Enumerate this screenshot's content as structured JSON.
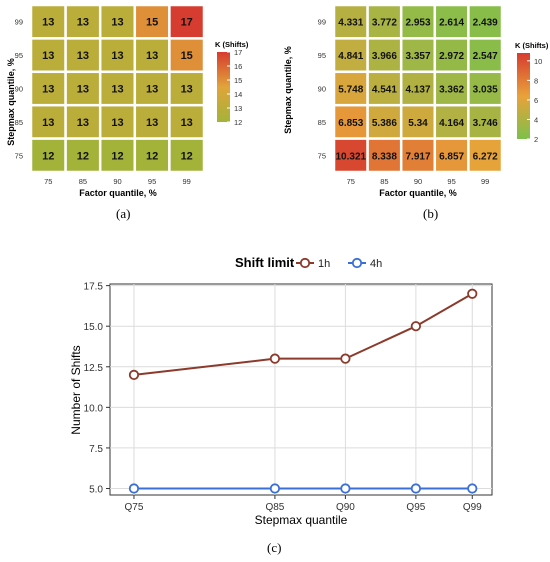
{
  "panel_labels": {
    "a": "(a)",
    "b": "(b)",
    "c": "(c)"
  },
  "chart_data": [
    {
      "type": "heatmap",
      "panel": "a",
      "xlabel": "Factor quantile, %",
      "ylabel": "Stepmax quantile, %",
      "x_ticks": [
        "75",
        "85",
        "90",
        "95",
        "99"
      ],
      "y_ticks": [
        "99",
        "95",
        "90",
        "85",
        "75"
      ],
      "values": [
        [
          13,
          13,
          13,
          15,
          17
        ],
        [
          13,
          13,
          13,
          13,
          15
        ],
        [
          13,
          13,
          13,
          13,
          13
        ],
        [
          13,
          13,
          13,
          13,
          13
        ],
        [
          12,
          12,
          12,
          12,
          12
        ]
      ],
      "legend_title": "K (Shifts)",
      "legend_ticks": [
        "17",
        "16",
        "15",
        "14",
        "13",
        "12"
      ],
      "color_range": [
        12,
        17
      ],
      "colors": {
        "low": "#a3b33a",
        "mid": "#e0a43a",
        "high": "#d63c2f"
      }
    },
    {
      "type": "heatmap",
      "panel": "b",
      "xlabel": "Factor quantile, %",
      "ylabel": "Stepmax quantile, %",
      "x_ticks": [
        "75",
        "85",
        "90",
        "95",
        "99"
      ],
      "y_ticks": [
        "99",
        "95",
        "90",
        "85",
        "75"
      ],
      "values": [
        [
          4.331,
          3.772,
          2.953,
          2.614,
          2.439
        ],
        [
          4.841,
          3.966,
          3.357,
          2.972,
          2.547
        ],
        [
          5.748,
          4.541,
          4.137,
          3.362,
          3.035
        ],
        [
          6.853,
          5.386,
          5.34,
          4.164,
          3.746
        ],
        [
          10.321,
          8.338,
          7.917,
          6.857,
          6.272
        ]
      ],
      "value_labels": [
        [
          "4.331",
          "3.772",
          "2.953",
          "2.614",
          "2.439"
        ],
        [
          "4.841",
          "3.966",
          "3.357",
          "2.972",
          "2.547"
        ],
        [
          "5.748",
          "4.541",
          "4.137",
          "3.362",
          "3.035"
        ],
        [
          "6.853",
          "5.386",
          "5.34",
          "4.164",
          "3.746"
        ],
        [
          "10.321",
          "8.338",
          "7.917",
          "6.857",
          "6.272"
        ]
      ],
      "legend_title": "K (Shifts)",
      "legend_ticks": [
        "10",
        "8",
        "6",
        "4",
        "2"
      ],
      "color_range": [
        2,
        10.8
      ],
      "colors": {
        "low": "#7dc04b",
        "mid": "#e8a23a",
        "high": "#d63c2f"
      }
    },
    {
      "type": "line",
      "panel": "c",
      "legend_title": "Shift limit",
      "categories": [
        "Q75",
        "Q85",
        "Q90",
        "Q95",
        "Q99"
      ],
      "x_positions": [
        75,
        85,
        90,
        95,
        99
      ],
      "xlabel": "Stepmax quantile",
      "ylabel": "Number of Shifts",
      "ylim": [
        4.6,
        17.6
      ],
      "y_ticks": [
        5.0,
        7.5,
        10.0,
        12.5,
        15.0,
        17.5
      ],
      "y_tick_labels": [
        "5.0",
        "7.5",
        "10.0",
        "12.5",
        "15.0",
        "17.5"
      ],
      "grid": true,
      "legend_position": "top",
      "series": [
        {
          "name": "1h",
          "values": [
            12,
            13,
            13,
            15,
            17
          ],
          "color": "#8b3a2b"
        },
        {
          "name": "4h",
          "values": [
            5,
            5,
            5,
            5,
            5
          ],
          "color": "#3a6fd8"
        }
      ]
    }
  ]
}
